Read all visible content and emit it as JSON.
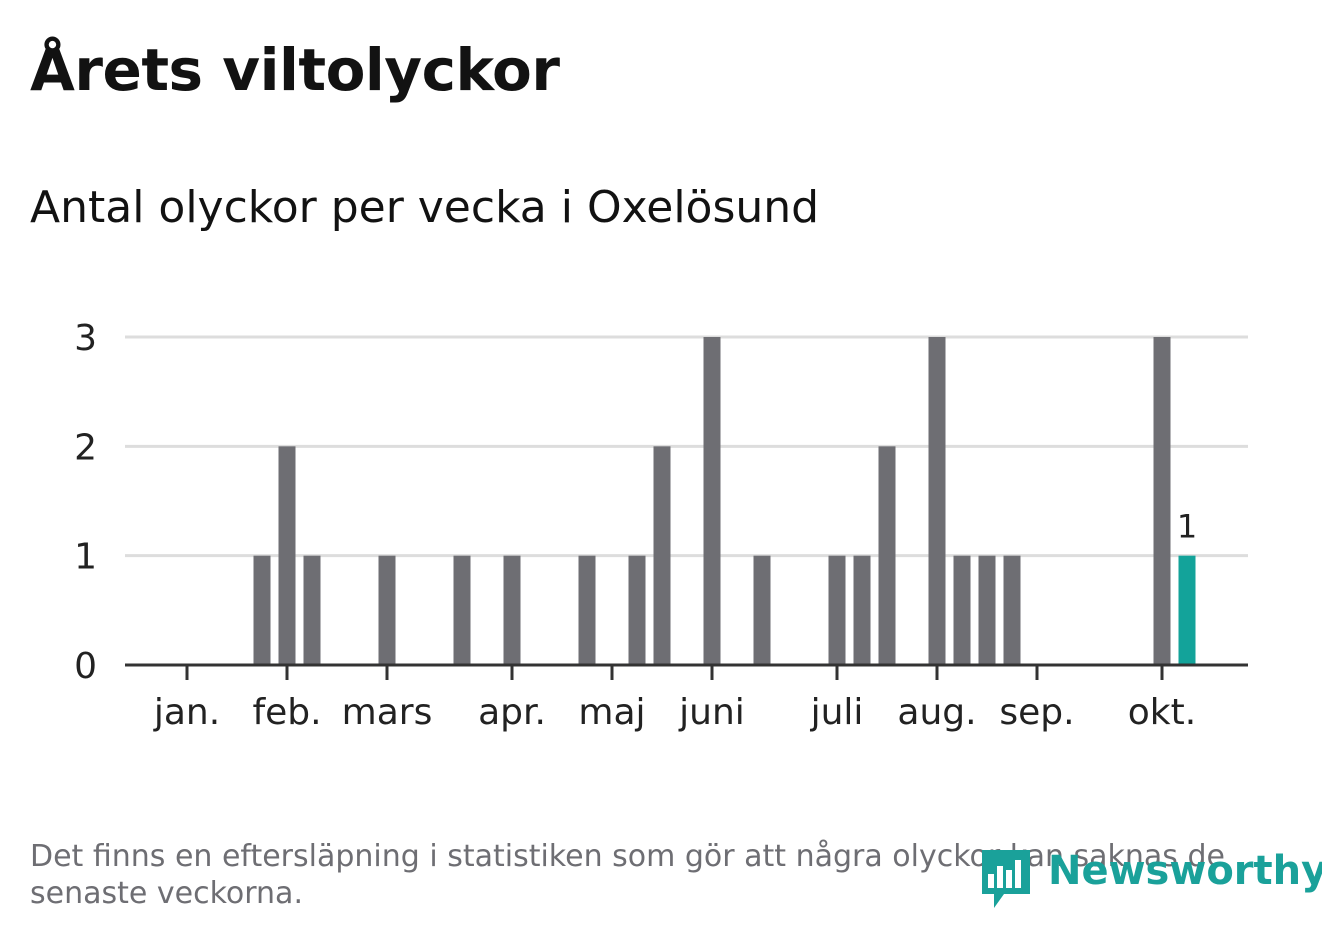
{
  "title": "Årets viltolyckor",
  "subtitle": "Antal olyckor per vecka i Oxelösund",
  "note": "Det finns en eftersläpning i statistiken som gör att några olyckor kan saknas de senaste veckorna.",
  "brand": {
    "name": "Newsworthy",
    "icon": "bar-chart-speech-bubble-icon",
    "color": "#1aa19a"
  },
  "colors": {
    "bar": "#6e6e73",
    "highlight": "#13a39a",
    "grid": "#dddddd",
    "axis": "#333333"
  },
  "chart_data": {
    "type": "bar",
    "title": "Årets viltolyckor",
    "subtitle": "Antal olyckor per vecka i Oxelösund",
    "xlabel": "",
    "ylabel": "",
    "ylim": [
      0,
      3
    ],
    "yticks": [
      0,
      1,
      2,
      3
    ],
    "grid": true,
    "legend": "none",
    "month_labels": [
      {
        "label": "jan.",
        "week": 3
      },
      {
        "label": "feb.",
        "week": 7
      },
      {
        "label": "mars",
        "week": 11
      },
      {
        "label": "apr.",
        "week": 16
      },
      {
        "label": "maj",
        "week": 20
      },
      {
        "label": "juni",
        "week": 24
      },
      {
        "label": "juli",
        "week": 29
      },
      {
        "label": "aug.",
        "week": 33
      },
      {
        "label": "sep.",
        "week": 37
      },
      {
        "label": "okt.",
        "week": 42
      }
    ],
    "weeks": [
      1,
      2,
      3,
      4,
      5,
      6,
      7,
      8,
      9,
      10,
      11,
      12,
      13,
      14,
      15,
      16,
      17,
      18,
      19,
      20,
      21,
      22,
      23,
      24,
      25,
      26,
      27,
      28,
      29,
      30,
      31,
      32,
      33,
      34,
      35,
      36,
      37,
      38,
      39,
      40,
      41,
      42,
      43
    ],
    "values": [
      0,
      0,
      0,
      0,
      0,
      1,
      2,
      1,
      0,
      0,
      1,
      0,
      0,
      1,
      0,
      1,
      0,
      0,
      1,
      0,
      1,
      2,
      0,
      3,
      0,
      1,
      0,
      0,
      1,
      1,
      2,
      0,
      3,
      1,
      1,
      1,
      0,
      0,
      0,
      0,
      0,
      3,
      1
    ],
    "highlight_index": 42,
    "highlight_label": "1"
  }
}
